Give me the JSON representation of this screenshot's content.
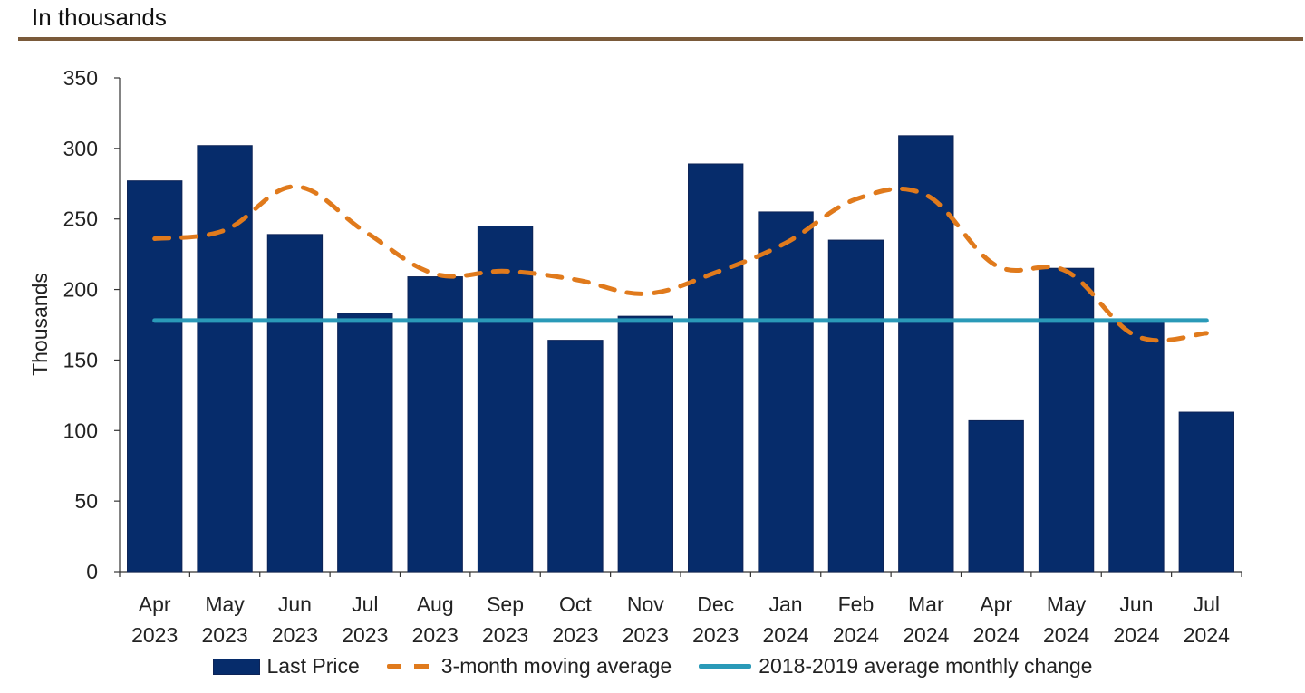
{
  "header": {
    "title": "In thousands"
  },
  "colors": {
    "bar": "#062c6b",
    "moving_avg": "#e07a1c",
    "benchmark": "#2a9ab8",
    "rule": "#7a5a3a"
  },
  "chart_data": {
    "type": "bar",
    "title": "In thousands",
    "xlabel": "",
    "ylabel": "Thousands",
    "ylim": [
      0,
      350
    ],
    "yticks": [
      0,
      50,
      100,
      150,
      200,
      250,
      300,
      350
    ],
    "grid": false,
    "legend_position": "bottom",
    "categories": [
      [
        "Apr",
        "2023"
      ],
      [
        "May",
        "2023"
      ],
      [
        "Jun",
        "2023"
      ],
      [
        "Jul",
        "2023"
      ],
      [
        "Aug",
        "2023"
      ],
      [
        "Sep",
        "2023"
      ],
      [
        "Oct",
        "2023"
      ],
      [
        "Nov",
        "2023"
      ],
      [
        "Dec",
        "2023"
      ],
      [
        "Jan",
        "2024"
      ],
      [
        "Feb",
        "2024"
      ],
      [
        "Mar",
        "2024"
      ],
      [
        "Apr",
        "2024"
      ],
      [
        "May",
        "2024"
      ],
      [
        "Jun",
        "2024"
      ],
      [
        "Jul",
        "2024"
      ]
    ],
    "series": [
      {
        "name": "Last Price",
        "type": "bar",
        "values": [
          277,
          302,
          239,
          183,
          209,
          245,
          164,
          181,
          289,
          255,
          235,
          309,
          107,
          215,
          177,
          113
        ]
      },
      {
        "name": "3-month moving average",
        "type": "line",
        "style": "dashed",
        "values": [
          236,
          242,
          273,
          241,
          211,
          213,
          207,
          197,
          212,
          233,
          264,
          267,
          217,
          213,
          167,
          169
        ]
      },
      {
        "name": "2018-2019 average monthly change",
        "type": "line",
        "style": "solid",
        "values": [
          178,
          178,
          178,
          178,
          178,
          178,
          178,
          178,
          178,
          178,
          178,
          178,
          178,
          178,
          178,
          178
        ]
      }
    ]
  }
}
